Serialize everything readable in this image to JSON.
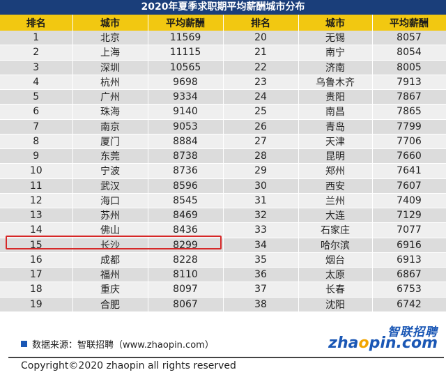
{
  "title": "2020年夏季求职期平均薪酬城市分布",
  "headers": [
    "排名",
    "城市",
    "平均薪酬",
    "排名",
    "城市",
    "平均薪酬"
  ],
  "left": [
    [
      "1",
      "北京",
      "11569"
    ],
    [
      "2",
      "上海",
      "11115"
    ],
    [
      "3",
      "深圳",
      "10565"
    ],
    [
      "4",
      "杭州",
      "9698"
    ],
    [
      "5",
      "广州",
      "9334"
    ],
    [
      "6",
      "珠海",
      "9140"
    ],
    [
      "7",
      "南京",
      "9053"
    ],
    [
      "8",
      "厦门",
      "8884"
    ],
    [
      "9",
      "东莞",
      "8738"
    ],
    [
      "10",
      "宁波",
      "8736"
    ],
    [
      "11",
      "武汉",
      "8596"
    ],
    [
      "12",
      "海口",
      "8545"
    ],
    [
      "13",
      "苏州",
      "8469"
    ],
    [
      "14",
      "佛山",
      "8436"
    ],
    [
      "15",
      "长沙",
      "8299"
    ],
    [
      "16",
      "成都",
      "8228"
    ],
    [
      "17",
      "福州",
      "8110"
    ],
    [
      "18",
      "重庆",
      "8097"
    ],
    [
      "19",
      "合肥",
      "8067"
    ]
  ],
  "right": [
    [
      "20",
      "无锡",
      "8057"
    ],
    [
      "21",
      "南宁",
      "8054"
    ],
    [
      "22",
      "济南",
      "8005"
    ],
    [
      "23",
      "乌鲁木齐",
      "7913"
    ],
    [
      "24",
      "贵阳",
      "7867"
    ],
    [
      "25",
      "南昌",
      "7865"
    ],
    [
      "26",
      "青岛",
      "7799"
    ],
    [
      "27",
      "天津",
      "7706"
    ],
    [
      "28",
      "昆明",
      "7660"
    ],
    [
      "29",
      "郑州",
      "7641"
    ],
    [
      "30",
      "西安",
      "7607"
    ],
    [
      "31",
      "兰州",
      "7409"
    ],
    [
      "32",
      "大连",
      "7129"
    ],
    [
      "33",
      "石家庄",
      "7077"
    ],
    [
      "34",
      "哈尔滨",
      "6916"
    ],
    [
      "35",
      "烟台",
      "6913"
    ],
    [
      "36",
      "太原",
      "6867"
    ],
    [
      "37",
      "长春",
      "6753"
    ],
    [
      "38",
      "沈阳",
      "6742"
    ]
  ],
  "source": "数据来源：智联招聘（www.zhaopin.com）",
  "logo": {
    "cn": "智联招聘",
    "en_pre": "zha",
    "en_o": "o",
    "en_post": "pin.com"
  },
  "copyright": "Copyright©2020 zhaopin all rights reserved",
  "colors": {
    "title_bg": "#1a3e7a",
    "header_bg": "#f2c811",
    "highlight": "#d62828",
    "brand": "#1a57b5"
  }
}
